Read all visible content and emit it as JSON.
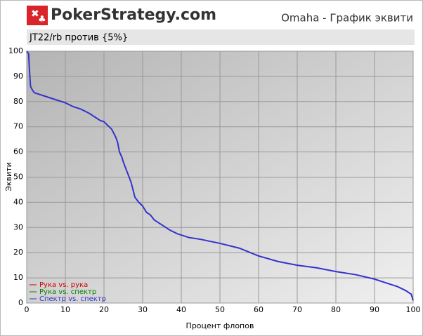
{
  "header": {
    "brand": "PokerStrategy.com"
  },
  "chart_data": {
    "type": "line",
    "title": "Omaha - График эквити",
    "subtitle": "JT22/rb против {5%}",
    "xlabel": "Процент флопов",
    "ylabel": "Эквити",
    "x": [
      0,
      0.5,
      0.7,
      0.9,
      1,
      1.5,
      2,
      3,
      5,
      8,
      10,
      12,
      14,
      16,
      18,
      19,
      20,
      21,
      22,
      23,
      23.5,
      24,
      24.3,
      24.6,
      25,
      25.5,
      26,
      26.5,
      27,
      27.5,
      28,
      29,
      30,
      31,
      32,
      33,
      35,
      37,
      39,
      40,
      42,
      45,
      50,
      55,
      60,
      65,
      70,
      75,
      80,
      85,
      90,
      93,
      96,
      98,
      99.5,
      100
    ],
    "series": [
      {
        "name": "Спектр vs. спектр",
        "color": "#3333cc",
        "values": [
          100,
          99,
          93,
          88,
          86,
          84.5,
          83.5,
          83,
          82,
          80.5,
          79.5,
          78,
          77,
          75.5,
          73.5,
          72.5,
          72,
          70.5,
          69,
          66,
          64,
          60,
          59,
          58,
          56,
          54,
          52,
          50,
          48,
          45,
          42,
          40,
          38.5,
          36,
          35,
          33,
          31,
          29,
          27.5,
          27,
          26,
          25.3,
          23.7,
          21.8,
          18.7,
          16.5,
          15,
          14,
          12.5,
          11.3,
          9.5,
          8,
          6.5,
          5,
          3.5,
          1
        ]
      },
      {
        "name": "Рука vs. спектр",
        "color": "#008000",
        "values": [
          null,
          null,
          null,
          null,
          null,
          null,
          null,
          null,
          null,
          null,
          null,
          null,
          null,
          null,
          null,
          null,
          null,
          null,
          null,
          null,
          null,
          null,
          null,
          null,
          null,
          null,
          null,
          null,
          null,
          null,
          null,
          null,
          null,
          null,
          null,
          null,
          null,
          null,
          null,
          null,
          null,
          null,
          null,
          null,
          null,
          null,
          null,
          null,
          null,
          null,
          null,
          null,
          null,
          null,
          null,
          null
        ]
      },
      {
        "name": "Рука vs. рука",
        "color": "#cc0000",
        "values": [
          null,
          null,
          null,
          null,
          null,
          null,
          null,
          null,
          null,
          null,
          null,
          null,
          null,
          null,
          null,
          null,
          null,
          null,
          null,
          null,
          null,
          null,
          null,
          null,
          null,
          null,
          null,
          null,
          null,
          null,
          null,
          null,
          null,
          null,
          null,
          null,
          null,
          null,
          null,
          null,
          null,
          null,
          null,
          null,
          null,
          null,
          null,
          null,
          null,
          null,
          null,
          null,
          null,
          null,
          null,
          null
        ]
      }
    ],
    "xlim": [
      0,
      100
    ],
    "ylim": [
      0,
      100
    ],
    "xticks": [
      0,
      10,
      20,
      30,
      40,
      50,
      60,
      70,
      80,
      90,
      100
    ],
    "yticks": [
      0,
      10,
      20,
      30,
      40,
      50,
      60,
      70,
      80,
      90,
      100
    ],
    "grid": true,
    "legend": "lower left"
  }
}
